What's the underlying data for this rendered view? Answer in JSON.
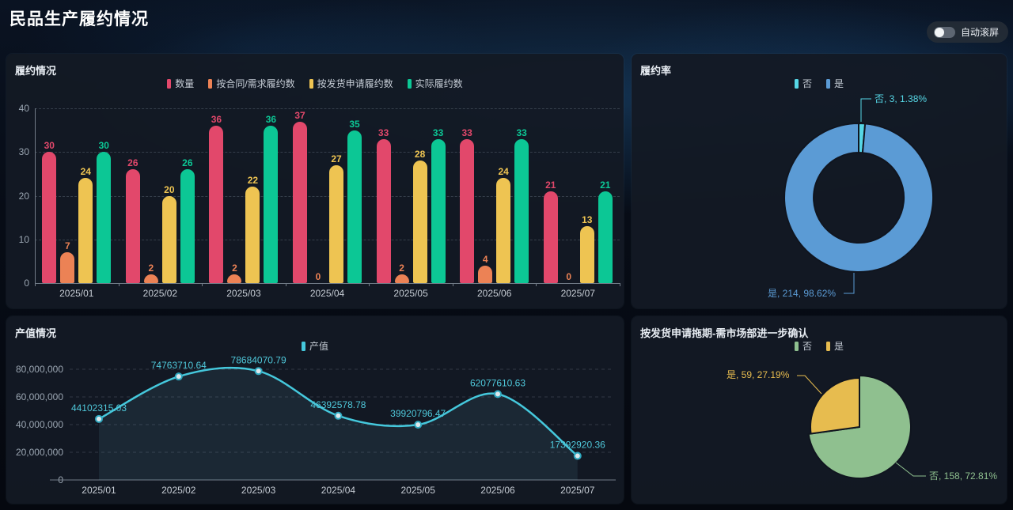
{
  "header": {
    "title": "民品生产履约情况",
    "auto_scroll_label": "自动滚屏",
    "auto_scroll_on": false
  },
  "chart_data": [
    {
      "id": "performance",
      "type": "bar",
      "title": "履约情况",
      "categories": [
        "2025/01",
        "2025/02",
        "2025/03",
        "2025/04",
        "2025/05",
        "2025/06",
        "2025/07"
      ],
      "series": [
        {
          "name": "数量",
          "color": "#e2486b",
          "values": [
            30,
            26,
            36,
            37,
            33,
            33,
            21
          ]
        },
        {
          "name": "按合同/需求履约数",
          "color": "#ec8255",
          "values": [
            7,
            2,
            2,
            0,
            2,
            4,
            0
          ]
        },
        {
          "name": "按发货申请履约数",
          "color": "#eec452",
          "values": [
            24,
            20,
            22,
            27,
            28,
            24,
            13
          ]
        },
        {
          "name": "实际履约数",
          "color": "#0cc795",
          "values": [
            30,
            26,
            36,
            35,
            33,
            33,
            21
          ]
        }
      ],
      "ylim": [
        0,
        40
      ],
      "yticks": [
        0,
        10,
        20,
        30,
        40
      ],
      "grid": true,
      "legend_position": "top"
    },
    {
      "id": "rate",
      "type": "pie",
      "subtype": "donut",
      "title": "履约率",
      "slices": [
        {
          "name": "否",
          "value": 3,
          "percent": 1.38,
          "color": "#56d7e6",
          "label": "否, 3, 1.38%"
        },
        {
          "name": "是",
          "value": 214,
          "percent": 98.62,
          "color": "#5b9bd5",
          "label": "是, 214, 98.62%"
        }
      ],
      "legend_position": "top"
    },
    {
      "id": "output",
      "type": "line",
      "title": "产值情况",
      "categories": [
        "2025/01",
        "2025/02",
        "2025/03",
        "2025/04",
        "2025/05",
        "2025/06",
        "2025/07"
      ],
      "series": [
        {
          "name": "产值",
          "color": "#45c8dc",
          "values": [
            44102315.03,
            74763710.64,
            78684070.79,
            46392578.78,
            39920796.47,
            62077610.63,
            17392920.36
          ]
        }
      ],
      "ylim": [
        0,
        80000000
      ],
      "ytick_labels": [
        "0",
        "20,000,000",
        "40,000,000",
        "60,000,000",
        "80,000,000"
      ],
      "area": true,
      "smooth": true,
      "grid": true,
      "legend_position": "top"
    },
    {
      "id": "delay",
      "type": "pie",
      "title": "按发货申请拖期-需市场部进一步确认",
      "slices": [
        {
          "name": "否",
          "value": 158,
          "percent": 72.81,
          "color": "#8fc08f",
          "label": "否, 158, 72.81%"
        },
        {
          "name": "是",
          "value": 59,
          "percent": 27.19,
          "color": "#e7bc4f",
          "label": "是, 59, 27.19%"
        }
      ],
      "legend_position": "top"
    }
  ]
}
